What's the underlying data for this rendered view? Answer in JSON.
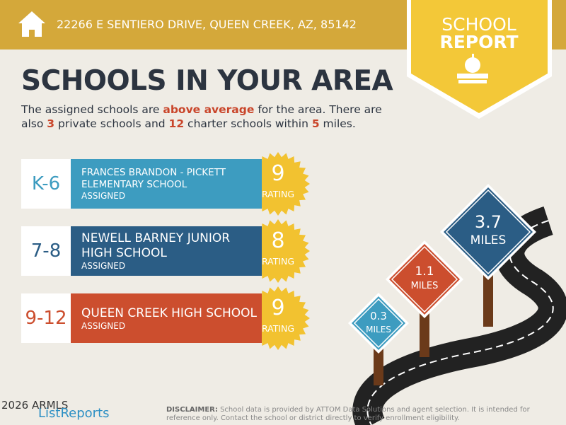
{
  "header": {
    "address": "22266 E SENTIERO DRIVE, QUEEN CREEK, AZ, 85142"
  },
  "badge": {
    "line1": "SCHOOL",
    "line2": "REPORT"
  },
  "title": "SCHOOLS IN YOUR AREA",
  "intro": [
    {
      "text": "The assigned schools are ",
      "emphasis": false
    },
    {
      "text": "above average",
      "emphasis": true
    },
    {
      "text": " for the area. There are also ",
      "emphasis": false
    },
    {
      "text": "3",
      "emphasis": true
    },
    {
      "text": " private schools and ",
      "emphasis": false
    },
    {
      "text": "12",
      "emphasis": true
    },
    {
      "text": " charter schools within ",
      "emphasis": false
    },
    {
      "text": "5",
      "emphasis": true
    },
    {
      "text": " miles.",
      "emphasis": false
    }
  ],
  "schools": [
    {
      "grades": "K-6",
      "name": "FRANCES BRANDON - PICKETT ELEMENTARY SCHOOL",
      "status": "ASSIGNED",
      "rating": 9,
      "rating_label": "RATING",
      "color": "#3d9cc0"
    },
    {
      "grades": "7-8",
      "name": "NEWELL BARNEY JUNIOR HIGH SCHOOL",
      "status": "ASSIGNED",
      "rating": 8,
      "rating_label": "RATING",
      "color": "#2b5d85"
    },
    {
      "grades": "9-12",
      "name": "QUEEN CREEK HIGH SCHOOL",
      "status": "ASSIGNED",
      "rating": 9,
      "rating_label": "RATING",
      "color": "#cc4e2e"
    }
  ],
  "distances": [
    {
      "value": 0.3,
      "unit": "MILES",
      "color": "#3d9cc0"
    },
    {
      "value": 1.1,
      "unit": "MILES",
      "color": "#cc4e2e"
    },
    {
      "value": 3.7,
      "unit": "MILES",
      "color": "#2b5d85"
    }
  ],
  "footer": {
    "watermark": "2026 ARMLS",
    "logo": "ListReports",
    "disclaimer_label": "DISCLAIMER:",
    "disclaimer": "School data is provided by ATTOM Data Solutions and agent selection. It is intended for reference only. Contact the school or district directly to verify enrollment eligibility."
  }
}
